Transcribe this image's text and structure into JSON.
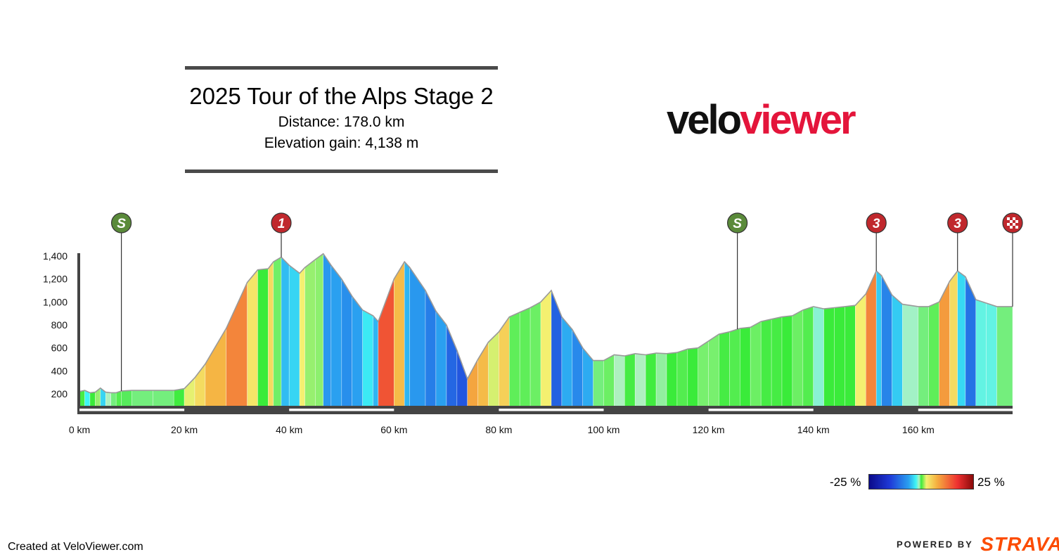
{
  "title": "2025 Tour of the Alps Stage 2",
  "distance_label": "Distance: 178.0 km",
  "gain_label": "Elevation gain: 4,138 m",
  "logo": {
    "part1": "velo",
    "part2": "viewer"
  },
  "legend": {
    "min_label": "-25 %",
    "max_label": "25 %"
  },
  "footer": {
    "created": "Created at VeloViewer.com",
    "powered_by": "POWERED BY",
    "brand": "STRAVA"
  },
  "colors": {
    "accent": "#e4153b",
    "sprint_marker": "#5a8a3a",
    "kom_marker": "#c0282d",
    "strava": "#fc4c02"
  },
  "chart_data": {
    "type": "area",
    "xlabel": "",
    "ylabel": "",
    "xlim": [
      0,
      178
    ],
    "ylim": [
      100,
      1450
    ],
    "x_ticks": [
      0,
      20,
      40,
      60,
      80,
      100,
      120,
      140,
      160
    ],
    "x_tick_labels": [
      "0 km",
      "20 km",
      "40 km",
      "60 km",
      "80 km",
      "100 km",
      "120 km",
      "140 km",
      "160 km"
    ],
    "y_ticks": [
      200,
      400,
      600,
      800,
      1000,
      1200,
      1400
    ],
    "y_tick_labels": [
      "200",
      "400",
      "600",
      "800",
      "1,000",
      "1,200",
      "1,400"
    ],
    "markers": [
      {
        "km": 8,
        "label": "S",
        "type": "sprint"
      },
      {
        "km": 38.5,
        "label": "1",
        "type": "kom"
      },
      {
        "km": 125.5,
        "label": "S",
        "type": "sprint"
      },
      {
        "km": 152,
        "label": "3",
        "type": "kom"
      },
      {
        "km": 167.5,
        "label": "3",
        "type": "kom"
      },
      {
        "km": 178,
        "label": "",
        "type": "finish"
      }
    ],
    "profile": [
      [
        0,
        220
      ],
      [
        1,
        230
      ],
      [
        2,
        210
      ],
      [
        3,
        215
      ],
      [
        4,
        250
      ],
      [
        5,
        215
      ],
      [
        6,
        210
      ],
      [
        7,
        210
      ],
      [
        8,
        225
      ],
      [
        10,
        230
      ],
      [
        14,
        230
      ],
      [
        18,
        230
      ],
      [
        20,
        245
      ],
      [
        22,
        340
      ],
      [
        24,
        460
      ],
      [
        28,
        770
      ],
      [
        32,
        1170
      ],
      [
        34,
        1280
      ],
      [
        36,
        1290
      ],
      [
        37,
        1350
      ],
      [
        38.5,
        1390
      ],
      [
        40,
        1320
      ],
      [
        42,
        1250
      ],
      [
        43,
        1300
      ],
      [
        45,
        1370
      ],
      [
        46.5,
        1420
      ],
      [
        48,
        1320
      ],
      [
        50,
        1200
      ],
      [
        52,
        1050
      ],
      [
        54,
        930
      ],
      [
        56,
        880
      ],
      [
        57,
        830
      ],
      [
        60,
        1200
      ],
      [
        62,
        1350
      ],
      [
        63,
        1300
      ],
      [
        66,
        1100
      ],
      [
        68,
        920
      ],
      [
        70,
        800
      ],
      [
        72,
        580
      ],
      [
        74,
        330
      ],
      [
        76,
        500
      ],
      [
        78,
        650
      ],
      [
        80,
        740
      ],
      [
        82,
        870
      ],
      [
        84,
        910
      ],
      [
        86,
        950
      ],
      [
        88,
        1000
      ],
      [
        90,
        1100
      ],
      [
        92,
        870
      ],
      [
        94,
        760
      ],
      [
        96,
        600
      ],
      [
        98,
        490
      ],
      [
        100,
        490
      ],
      [
        102,
        540
      ],
      [
        104,
        530
      ],
      [
        106,
        550
      ],
      [
        108,
        540
      ],
      [
        110,
        555
      ],
      [
        112,
        550
      ],
      [
        114,
        560
      ],
      [
        116,
        590
      ],
      [
        118,
        600
      ],
      [
        120,
        660
      ],
      [
        122,
        720
      ],
      [
        124,
        740
      ],
      [
        126,
        770
      ],
      [
        128,
        780
      ],
      [
        130,
        830
      ],
      [
        132,
        850
      ],
      [
        134,
        870
      ],
      [
        136,
        880
      ],
      [
        138,
        930
      ],
      [
        140,
        960
      ],
      [
        142,
        940
      ],
      [
        144,
        950
      ],
      [
        146,
        960
      ],
      [
        148,
        970
      ],
      [
        150,
        1070
      ],
      [
        152,
        1270
      ],
      [
        153,
        1230
      ],
      [
        155,
        1060
      ],
      [
        157,
        980
      ],
      [
        160,
        960
      ],
      [
        162,
        960
      ],
      [
        164,
        1000
      ],
      [
        166,
        1180
      ],
      [
        167.5,
        1270
      ],
      [
        169,
        1220
      ],
      [
        171,
        1020
      ],
      [
        173,
        990
      ],
      [
        175,
        960
      ],
      [
        178,
        960
      ]
    ]
  }
}
